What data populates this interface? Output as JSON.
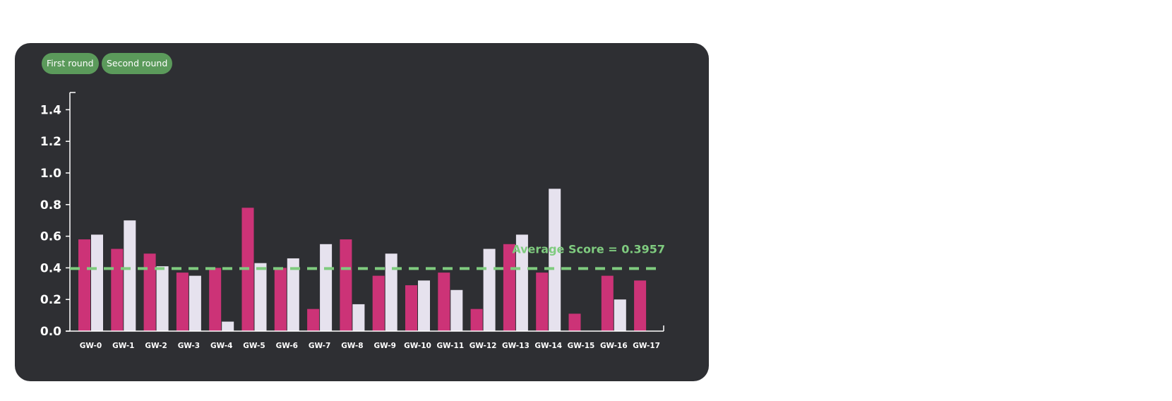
{
  "legend": {
    "first_label": "First round",
    "second_label": "Second round"
  },
  "colors": {
    "background": "#2e2f33",
    "first_round": "#cc3377",
    "second_round": "#e6e2ee",
    "legend_button": "#5b9a5b",
    "average_line": "#7fcb7f",
    "axis": "#ffffff"
  },
  "chart_data": {
    "type": "bar",
    "categories": [
      "GW-0",
      "GW-1",
      "GW-2",
      "GW-3",
      "GW-4",
      "GW-5",
      "GW-6",
      "GW-7",
      "GW-8",
      "GW-9",
      "GW-10",
      "GW-11",
      "GW-12",
      "GW-13",
      "GW-14",
      "GW-15",
      "GW-16",
      "GW-17"
    ],
    "series": [
      {
        "name": "First round",
        "values": [
          0.58,
          0.52,
          0.49,
          0.37,
          0.4,
          0.78,
          0.4,
          0.14,
          0.58,
          0.35,
          0.29,
          0.37,
          0.14,
          0.55,
          0.37,
          0.11,
          0.35,
          0.32
        ]
      },
      {
        "name": "Second round",
        "values": [
          0.61,
          0.7,
          0.41,
          0.35,
          0.06,
          0.43,
          0.46,
          0.55,
          0.17,
          0.49,
          0.32,
          0.26,
          0.52,
          0.61,
          0.9,
          null,
          0.2,
          null
        ]
      }
    ],
    "yticks": [
      "0.0",
      "0.2",
      "0.4",
      "0.6",
      "0.8",
      "1.0",
      "1.2",
      "1.4"
    ],
    "ylim": [
      0,
      1.5
    ],
    "average": {
      "value": 0.3957,
      "label": "Average Score = 0.3957"
    },
    "grid": false,
    "legend_position": "top-left"
  }
}
